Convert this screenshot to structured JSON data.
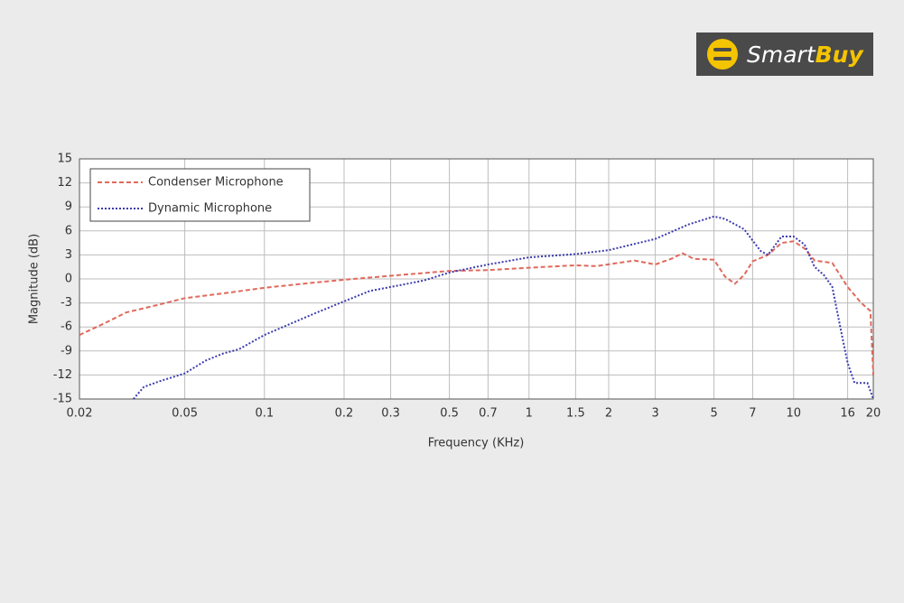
{
  "logo": {
    "brand_light": "Smart",
    "brand_bold": "Buy"
  },
  "chart_data": {
    "type": "line",
    "xlabel": "Frequency (KHz)",
    "ylabel": "Magnitude (dB)",
    "xscale": "log",
    "grid": true,
    "legend": "upper left",
    "xlim": [
      0.02,
      20
    ],
    "xticks": [
      0.02,
      0.05,
      0.1,
      0.2,
      0.3,
      0.5,
      0.7,
      1,
      1.5,
      2,
      3,
      5,
      7,
      10,
      16,
      20
    ],
    "ylim": [
      -15,
      15
    ],
    "yticks": [
      15,
      12,
      9,
      6,
      3,
      0,
      -3,
      -6,
      -9,
      -12,
      -15
    ],
    "series": [
      {
        "name": "Condenser Microphone",
        "color": "#e0695c",
        "style": "dashed",
        "x": [
          0.02,
          0.025,
          0.03,
          0.04,
          0.05,
          0.07,
          0.1,
          0.15,
          0.2,
          0.3,
          0.5,
          0.7,
          1,
          1.5,
          1.8,
          2.5,
          3,
          3.5,
          3.8,
          4.2,
          5,
          5.5,
          6,
          6.5,
          7,
          8,
          9,
          10,
          11,
          12,
          14,
          16,
          18,
          19.5,
          20
        ],
        "values": [
          -7,
          -5.5,
          -4.2,
          -3.2,
          -2.4,
          -1.8,
          -1.1,
          -0.5,
          -0.1,
          0.4,
          1.0,
          1.1,
          1.4,
          1.7,
          1.6,
          2.3,
          1.8,
          2.6,
          3.2,
          2.5,
          2.4,
          0.3,
          -0.6,
          0.5,
          2.2,
          3.0,
          4.5,
          4.7,
          3.8,
          2.3,
          2.0,
          -1.0,
          -3.0,
          -4.0,
          -12
        ]
      },
      {
        "name": "Dynamic Microphone",
        "color": "#3b3bae",
        "style": "dotted",
        "x": [
          0.032,
          0.035,
          0.04,
          0.05,
          0.06,
          0.07,
          0.08,
          0.1,
          0.15,
          0.2,
          0.25,
          0.3,
          0.4,
          0.5,
          0.7,
          1,
          1.5,
          2,
          3,
          4,
          5,
          5.5,
          6.5,
          7.5,
          8,
          9,
          10,
          11,
          12,
          13,
          14,
          15,
          16,
          17,
          18,
          19,
          20
        ],
        "values": [
          -15,
          -13.5,
          -12.8,
          -11.8,
          -10.2,
          -9.3,
          -8.8,
          -7,
          -4.5,
          -2.8,
          -1.5,
          -1.0,
          -0.2,
          0.8,
          1.8,
          2.7,
          3.1,
          3.6,
          5.0,
          6.8,
          7.8,
          7.5,
          6.2,
          3.5,
          3.0,
          5.3,
          5.3,
          4.3,
          1.5,
          0.5,
          -1,
          -6,
          -10.5,
          -13,
          -13,
          -13,
          -15
        ]
      }
    ]
  }
}
